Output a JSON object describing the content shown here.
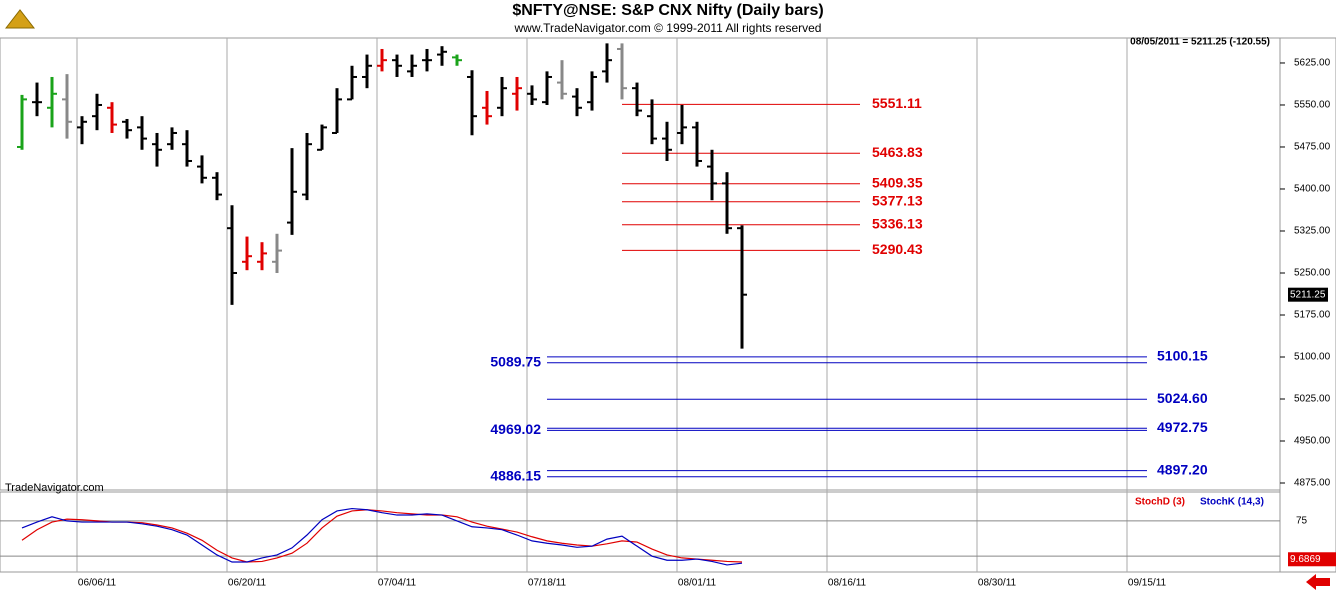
{
  "chart_data": {
    "type": "ohlc",
    "title": "$NFTY@NSE:  S&P CNX Nifty  (Daily bars)",
    "subtitle": "www.TradeNavigator.com © 1999-2011 All rights reserved",
    "quote": "08/05/2011 = 5211.25 (-120.55)",
    "watermark": "TradeNavigator.com",
    "last_price": 5211.25,
    "categories": [
      null,
      null,
      null,
      null,
      null,
      "06/06/11",
      null,
      null,
      null,
      null,
      null,
      null,
      null,
      null,
      null,
      "06/20/11",
      null,
      null,
      null,
      null,
      null,
      null,
      null,
      null,
      null,
      "07/04/11",
      null,
      null,
      null,
      null,
      null,
      null,
      null,
      null,
      null,
      "07/18/11",
      null,
      null,
      null,
      null,
      null,
      null,
      null,
      null,
      null,
      "08/01/11",
      null,
      null,
      null,
      null,
      null,
      null,
      null,
      null,
      null,
      "08/16/11",
      null,
      null,
      null,
      null,
      null,
      null,
      null,
      null,
      null,
      "08/30/11",
      null,
      null,
      null,
      null,
      null,
      null,
      null,
      null,
      null,
      "09/15/11",
      null
    ],
    "open": [
      5475,
      5555,
      5545,
      5560,
      5510,
      5530,
      5545,
      5520,
      5510,
      5480,
      5480,
      5480,
      5440,
      5420,
      5330,
      5270,
      5270,
      5270,
      5340,
      5390,
      5470,
      5500,
      5560,
      5600,
      5620,
      5630,
      5610,
      5630,
      5640,
      5635,
      5600,
      5545,
      5545,
      5570,
      5570,
      5555,
      5590,
      5565,
      5555,
      5610,
      5650,
      5580,
      5530,
      5490,
      5500,
      5510,
      5440,
      5410,
      5330,
      null,
      null,
      null,
      null,
      null,
      null,
      null,
      null,
      null,
      null,
      null,
      null,
      null,
      null,
      null,
      null,
      null,
      null,
      null,
      null,
      null,
      null,
      null,
      null,
      null,
      null,
      null,
      null
    ],
    "high": [
      5568,
      5590,
      5600,
      5605,
      5530,
      5570,
      5555,
      5525,
      5530,
      5500,
      5510,
      5505,
      5460,
      5430,
      5371,
      5315,
      5305,
      5320,
      5473,
      5500,
      5515,
      5580,
      5620,
      5640,
      5650,
      5640,
      5640,
      5650,
      5655,
      5640,
      5612,
      5575,
      5600,
      5600,
      5585,
      5610,
      5630,
      5580,
      5610,
      5660,
      5660,
      5590,
      5560,
      5520,
      5550,
      5520,
      5470,
      5430,
      5335,
      null,
      null,
      null,
      null,
      null,
      null,
      null,
      null,
      null,
      null,
      null,
      null,
      null,
      null,
      null,
      null,
      null,
      null,
      null,
      null,
      null,
      null,
      null,
      null,
      null,
      null,
      null,
      null
    ],
    "low": [
      5470,
      5530,
      5510,
      5490,
      5480,
      5505,
      5500,
      5490,
      5470,
      5440,
      5470,
      5440,
      5410,
      5380,
      5193,
      5255,
      5255,
      5250,
      5318,
      5380,
      5470,
      5500,
      5560,
      5580,
      5610,
      5600,
      5600,
      5610,
      5620,
      5620,
      5496,
      5515,
      5530,
      5540,
      5550,
      5550,
      5560,
      5530,
      5540,
      5590,
      5560,
      5530,
      5480,
      5450,
      5480,
      5440,
      5380,
      5320,
      5115,
      null,
      null,
      null,
      null,
      null,
      null,
      null,
      null,
      null,
      null,
      null,
      null,
      null,
      null,
      null,
      null,
      null,
      null,
      null,
      null,
      null,
      null,
      null,
      null,
      null,
      null,
      null,
      null
    ],
    "close": [
      5560,
      5555,
      5570,
      5520,
      5520,
      5550,
      5515,
      5505,
      5490,
      5470,
      5500,
      5450,
      5420,
      5390,
      5250,
      5280,
      5285,
      5290,
      5395,
      5480,
      5510,
      5560,
      5600,
      5620,
      5630,
      5620,
      5620,
      5630,
      5645,
      5630,
      5530,
      5530,
      5580,
      5580,
      5560,
      5600,
      5570,
      5545,
      5600,
      5630,
      5580,
      5540,
      5490,
      5470,
      5510,
      5450,
      5410,
      5330,
      5211.25,
      null,
      null,
      null,
      null,
      null,
      null,
      null,
      null,
      null,
      null,
      null,
      null,
      null,
      null,
      null,
      null,
      null,
      null,
      null,
      null,
      null,
      null,
      null,
      null,
      null,
      null,
      null,
      null
    ],
    "bar_colors": [
      "#1aa31a",
      "#000000",
      "#1aa31a",
      "#888888",
      "#000000",
      "#000000",
      "#e00000",
      "#000000",
      "#000000",
      "#000000",
      "#000000",
      "#000000",
      "#000000",
      "#000000",
      "#000000",
      "#e00000",
      "#e00000",
      "#888888",
      "#000000",
      "#000000",
      "#000000",
      "#000000",
      "#000000",
      "#000000",
      "#e00000",
      "#000000",
      "#000000",
      "#000000",
      "#000000",
      "#1aa31a",
      "#000000",
      "#e00000",
      "#000000",
      "#e00000",
      "#000000",
      "#000000",
      "#888888",
      "#000000",
      "#000000",
      "#000000",
      "#888888",
      "#000000",
      "#000000",
      "#000000",
      "#000000",
      "#000000",
      "#000000",
      "#000000",
      "#000000",
      null,
      null,
      null,
      null,
      null,
      null,
      null,
      null,
      null,
      null,
      null,
      null,
      null,
      null,
      null,
      null,
      null,
      null,
      null,
      null,
      null,
      null,
      null,
      null,
      null,
      null,
      null,
      null
    ],
    "ylim": [
      4862.5,
      5669.6
    ],
    "yticks": [
      {
        "value": 4875,
        "label": "4875.00"
      },
      {
        "value": 4950,
        "label": "4950.00"
      },
      {
        "value": 5025,
        "label": "5025.00"
      },
      {
        "value": 5100,
        "label": "5100.00"
      },
      {
        "value": 5175,
        "label": "5175.00"
      },
      {
        "value": 5250,
        "label": "5250.00"
      },
      {
        "value": 5325,
        "label": "5325.00"
      },
      {
        "value": 5400,
        "label": "5400.00"
      },
      {
        "value": 5475,
        "label": "5475.00"
      },
      {
        "value": 5550,
        "label": "5550.00"
      },
      {
        "value": 5625,
        "label": "5625.00"
      }
    ],
    "resistance": {
      "color": "#e00000",
      "values": [
        5551.11,
        5463.83,
        5409.35,
        5377.13,
        5336.13,
        5290.43
      ]
    },
    "support": {
      "color": "#0000c0",
      "values": [
        5100.15,
        5089.75,
        5024.6,
        4972.75,
        4969.02,
        4897.2,
        4886.15
      ],
      "value_labels": [
        "5100.15",
        "5089.75",
        "5024.60",
        "4972.75",
        "4969.02",
        "4897.20",
        "4886.15"
      ],
      "sides": [
        "right",
        "left",
        "right",
        "right",
        "left",
        "right",
        "left"
      ]
    },
    "stoch": {
      "ylim": [
        -12,
        114
      ],
      "yticks": [
        75
      ],
      "hlines": [
        75,
        15
      ],
      "last_value": 9.6869,
      "series": [
        {
          "name": "StochD (3)",
          "color": "#e00000",
          "values": [
            42,
            60,
            73,
            78,
            77,
            75,
            73,
            73,
            72,
            68,
            63,
            54,
            42,
            25,
            12,
            5,
            6,
            12,
            20,
            37,
            63,
            83,
            92,
            94,
            92,
            89,
            87,
            85,
            85,
            82,
            73,
            66,
            61,
            56,
            48,
            41,
            37,
            34,
            32,
            36,
            41,
            39,
            27,
            17,
            12,
            10,
            8,
            6,
            5,
            null,
            null,
            null,
            null,
            null,
            null,
            null,
            null,
            null,
            null,
            null,
            null,
            null,
            null,
            null,
            null,
            null,
            null,
            null,
            null,
            null,
            null,
            null,
            null,
            null,
            null,
            null,
            null
          ]
        },
        {
          "name": "StochK (14,3)",
          "color": "#0000c0",
          "values": [
            63,
            73,
            82,
            75,
            73,
            73,
            73,
            73,
            70,
            66,
            60,
            51,
            34,
            17,
            5,
            5,
            12,
            17,
            29,
            51,
            77,
            92,
            96,
            94,
            89,
            85,
            85,
            87,
            85,
            75,
            65,
            63,
            60,
            51,
            41,
            37,
            34,
            30,
            32,
            44,
            49,
            32,
            15,
            8,
            8,
            10,
            6,
            0,
            3,
            null,
            null,
            null,
            null,
            null,
            null,
            null,
            null,
            null,
            null,
            null,
            null,
            null,
            null,
            null,
            null,
            null,
            null,
            null,
            null,
            null,
            null,
            null,
            null,
            null,
            null,
            null,
            null
          ]
        }
      ]
    }
  }
}
